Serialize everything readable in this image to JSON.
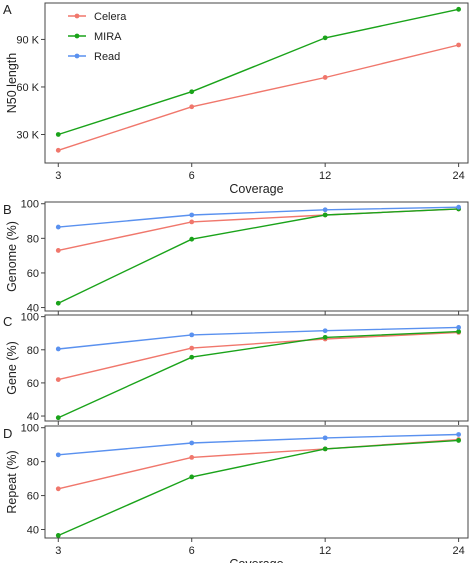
{
  "colors": {
    "Celera": "#f0776c",
    "MIRA": "#1aa31a",
    "Read": "#5a91ef",
    "panel_border": "#444444",
    "grid": "#dddddd",
    "text": "#222222"
  },
  "chart_data": [
    {
      "type": "line",
      "panel_letter": "A",
      "xlabel": "Coverage",
      "ylabel": "N50 length",
      "x": [
        3,
        6,
        12,
        24
      ],
      "x_ticks": [
        3,
        6,
        12,
        24
      ],
      "x_scale": "log",
      "xlim": [
        2.8,
        25.2
      ],
      "ylim": [
        12000,
        113000
      ],
      "y_ticks": [
        30000,
        60000,
        90000
      ],
      "y_tick_labels": [
        "30 K",
        "60 K",
        "90 K"
      ],
      "grid": false,
      "legend": {
        "placement": "top-left",
        "entries": [
          "Celera",
          "MIRA",
          "Read"
        ]
      },
      "series": [
        {
          "name": "Celera",
          "values": [
            20000,
            47500,
            66000,
            86500
          ]
        },
        {
          "name": "MIRA",
          "values": [
            30000,
            57000,
            91000,
            109000
          ]
        }
      ]
    },
    {
      "type": "line",
      "panel_letter": "B",
      "xlabel": "",
      "ylabel": "Genome (%)",
      "x": [
        3,
        6,
        12,
        24
      ],
      "x_scale": "log",
      "xlim": [
        2.8,
        25.2
      ],
      "ylim": [
        38,
        101
      ],
      "y_ticks": [
        40,
        60,
        80,
        100
      ],
      "grid": false,
      "series": [
        {
          "name": "Celera",
          "values": [
            73,
            89.5,
            93.5,
            97
          ]
        },
        {
          "name": "MIRA",
          "values": [
            42.5,
            79.5,
            93.5,
            97
          ]
        },
        {
          "name": "Read",
          "values": [
            86.5,
            93.5,
            96.5,
            98
          ]
        }
      ]
    },
    {
      "type": "line",
      "panel_letter": "C",
      "xlabel": "",
      "ylabel": "Gene (%)",
      "x": [
        3,
        6,
        12,
        24
      ],
      "x_scale": "log",
      "xlim": [
        2.8,
        25.2
      ],
      "ylim": [
        37,
        101
      ],
      "y_ticks": [
        40,
        60,
        80,
        100
      ],
      "grid": false,
      "series": [
        {
          "name": "Celera",
          "values": [
            62,
            81,
            86.5,
            90.5
          ]
        },
        {
          "name": "MIRA",
          "values": [
            39,
            75.5,
            87.5,
            91
          ]
        },
        {
          "name": "Read",
          "values": [
            80.5,
            89,
            91.5,
            93.5
          ]
        }
      ]
    },
    {
      "type": "line",
      "panel_letter": "D",
      "xlabel": "Coverage",
      "ylabel": "Repeat (%)",
      "x": [
        3,
        6,
        12,
        24
      ],
      "x_ticks": [
        3,
        6,
        12,
        24
      ],
      "x_scale": "log",
      "xlim": [
        2.8,
        25.2
      ],
      "ylim": [
        35,
        101
      ],
      "y_ticks": [
        40,
        60,
        80,
        100
      ],
      "grid": false,
      "series": [
        {
          "name": "Celera",
          "values": [
            64,
            82.5,
            87.5,
            93
          ]
        },
        {
          "name": "MIRA",
          "values": [
            36.5,
            71,
            87.5,
            92.5
          ]
        },
        {
          "name": "Read",
          "values": [
            84,
            91,
            94,
            96
          ]
        }
      ]
    }
  ]
}
